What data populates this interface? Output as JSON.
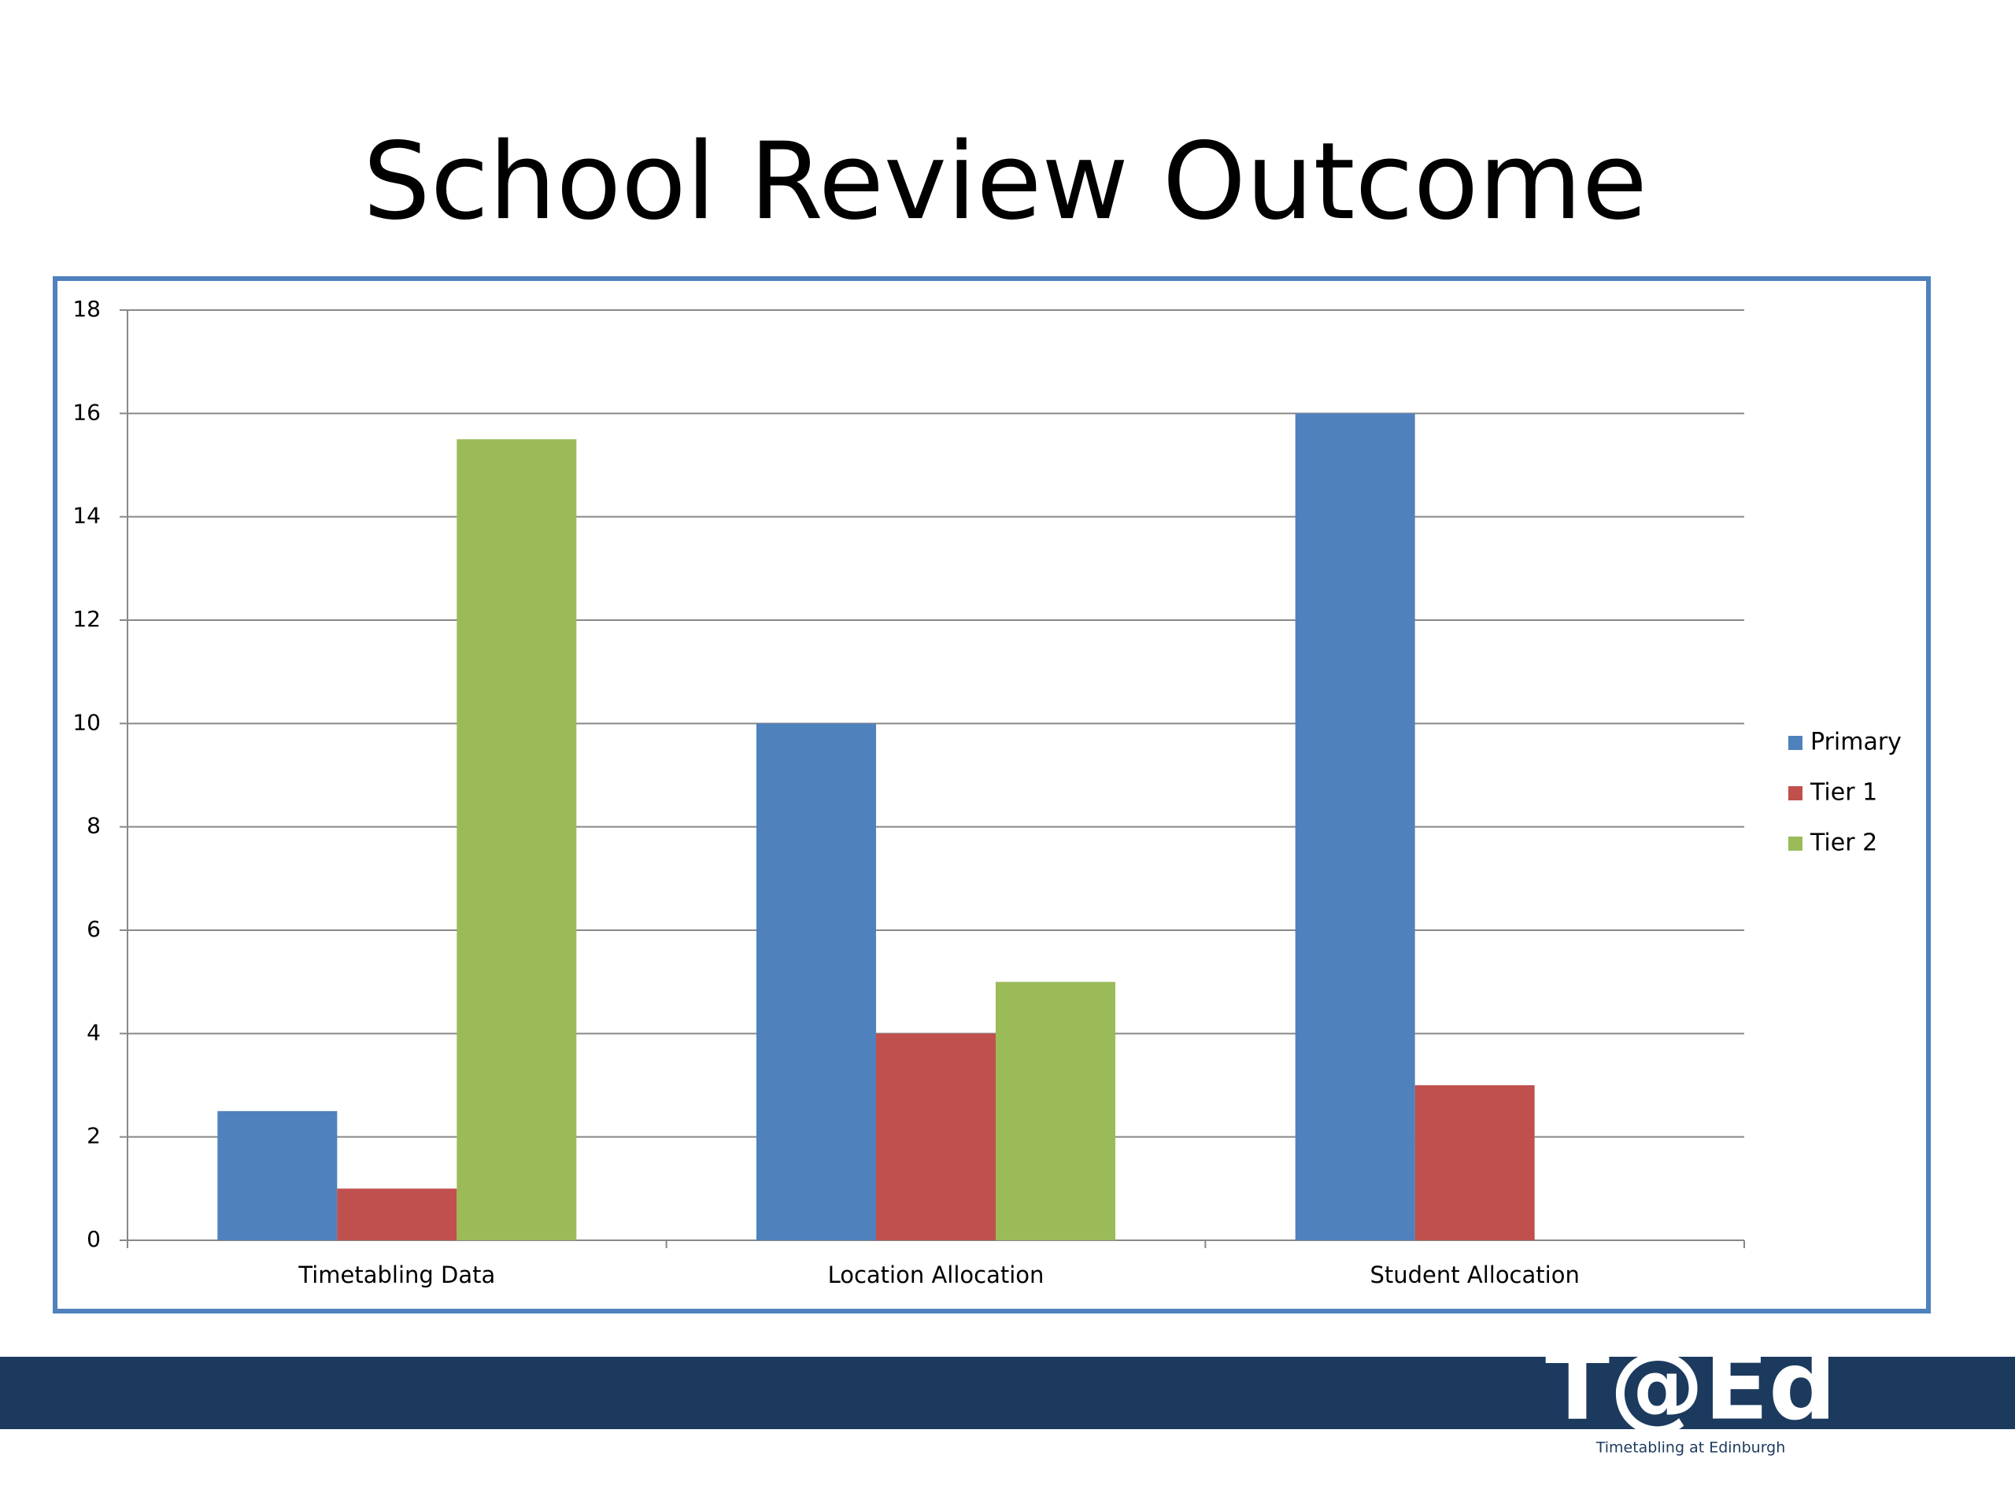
{
  "chart_data": {
    "type": "bar",
    "title": "School Review Outcome",
    "categories": [
      "Timetabling Data",
      "Location Allocation",
      "Student Allocation"
    ],
    "series": [
      {
        "name": "Primary",
        "color": "#4f81bd",
        "values": [
          2.5,
          10,
          16
        ]
      },
      {
        "name": "Tier 1",
        "color": "#c0504d",
        "values": [
          1,
          4,
          3
        ]
      },
      {
        "name": "Tier 2",
        "color": "#9bbb59",
        "values": [
          15.5,
          5,
          null
        ]
      }
    ],
    "ylim": [
      0,
      18
    ],
    "yticks": [
      0,
      2,
      4,
      6,
      8,
      10,
      12,
      14,
      16,
      18
    ],
    "grid": true,
    "legend": "right"
  },
  "footer": {
    "logo": "T@Ed",
    "tagline": "Timetabling at Edinburgh"
  }
}
